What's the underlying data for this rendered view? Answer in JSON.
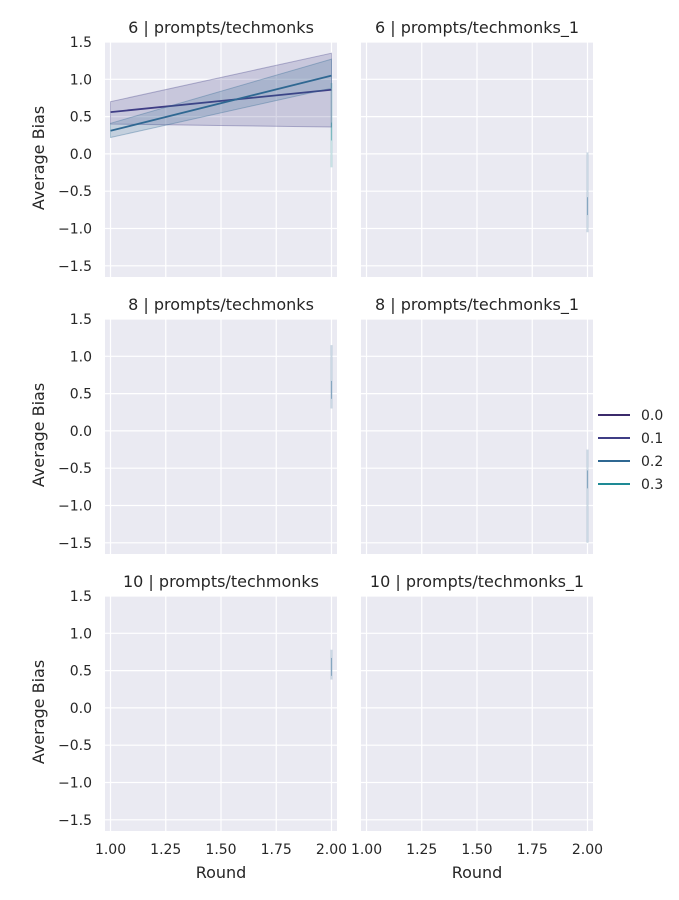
{
  "chart_data": {
    "type": "line",
    "xlabel": "Round",
    "ylabel": "Average Bias",
    "xlim": [
      0.975,
      2.025
    ],
    "ylim": [
      -1.65,
      1.5
    ],
    "xticks": [
      "1.00",
      "1.25",
      "1.50",
      "1.75",
      "2.00"
    ],
    "yticks": [
      "1.5",
      "1.0",
      "0.5",
      "0.0",
      "−0.5",
      "−1.0",
      "−1.5"
    ],
    "grid": true,
    "legend": {
      "placement": "right",
      "entries": [
        {
          "label": "0.0",
          "color": "#3b2a6b"
        },
        {
          "label": "0.1",
          "color": "#3f3d85"
        },
        {
          "label": "0.2",
          "color": "#2f6892"
        },
        {
          "label": "0.3",
          "color": "#1e8a95"
        }
      ]
    },
    "facets": [
      {
        "title": "6 | prompts/techmonks",
        "series": [
          {
            "name": "0.1",
            "color": "#3f3d85",
            "x": [
              1.0,
              2.0
            ],
            "y": [
              0.56,
              0.86
            ],
            "ci_low": [
              0.4,
              0.36
            ],
            "ci_high": [
              0.7,
              1.35
            ]
          },
          {
            "name": "0.2",
            "color": "#2f6892",
            "x": [
              1.0,
              2.0
            ],
            "y": [
              0.31,
              1.05
            ],
            "ci_low": [
              0.22,
              0.88
            ],
            "ci_high": [
              0.41,
              1.27
            ]
          },
          {
            "name": "0.3",
            "color": "#1e8a95",
            "x": [
              2.0,
              2.0
            ],
            "y": [
              0.3,
              0.3
            ],
            "ci_low": [
              -0.18
            ],
            "ci_high": [
              0.95
            ]
          }
        ]
      },
      {
        "title": "6 | prompts/techmonks_1",
        "series": [
          {
            "name": "0.2",
            "color": "#2f6892",
            "x": [
              2.0,
              2.0
            ],
            "y": [
              -0.7,
              -0.7
            ],
            "ci_low": [
              -1.05
            ],
            "ci_high": [
              0.02
            ]
          }
        ]
      },
      {
        "title": "8 | prompts/techmonks",
        "series": [
          {
            "name": "0.2",
            "color": "#2f6892",
            "x": [
              2.0,
              2.0
            ],
            "y": [
              0.55,
              0.55
            ],
            "ci_low": [
              0.3
            ],
            "ci_high": [
              1.15
            ]
          }
        ]
      },
      {
        "title": "8 | prompts/techmonks_1",
        "series": [
          {
            "name": "0.2",
            "color": "#2f6892",
            "x": [
              2.0,
              2.0
            ],
            "y": [
              -0.65,
              -0.65
            ],
            "ci_low": [
              -1.5
            ],
            "ci_high": [
              -0.25
            ]
          }
        ]
      },
      {
        "title": "10 | prompts/techmonks",
        "series": [
          {
            "name": "0.2",
            "color": "#2f6892",
            "x": [
              2.0,
              2.0
            ],
            "y": [
              0.55,
              0.55
            ],
            "ci_low": [
              0.38
            ],
            "ci_high": [
              0.78
            ]
          }
        ]
      },
      {
        "title": "10 | prompts/techmonks_1",
        "series": []
      }
    ]
  }
}
